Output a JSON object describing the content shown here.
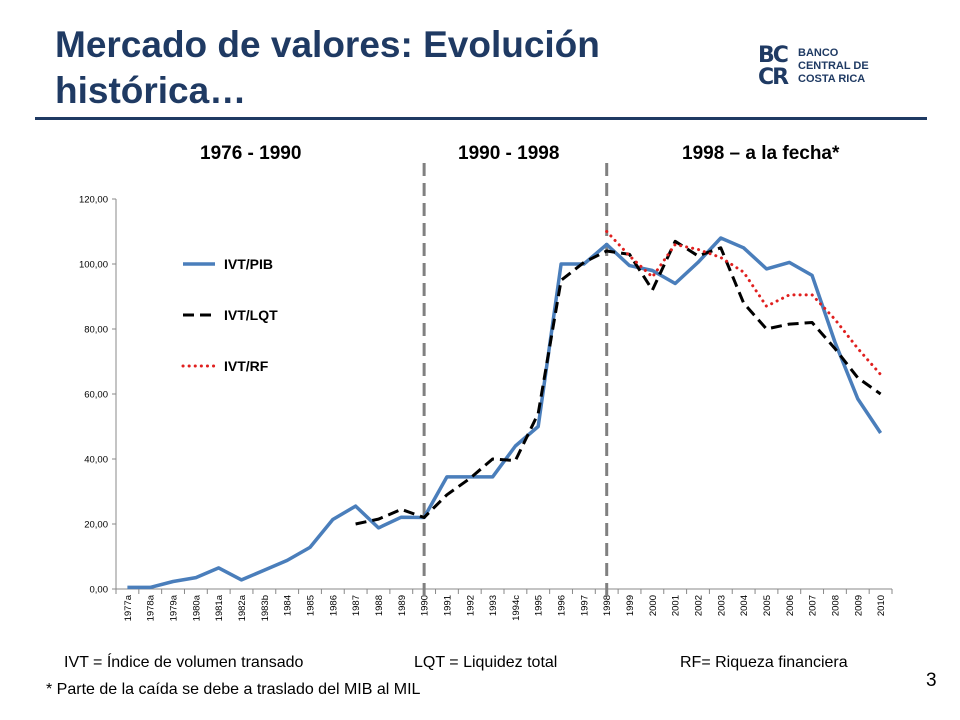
{
  "slide": {
    "title": "Mercado de valores: Evolución histórica…",
    "number": "3",
    "logo": {
      "mark_top": "BC",
      "mark_bottom": "CR",
      "line1": "BANCO",
      "line2": "CENTRAL DE",
      "line3": "COSTA RICA"
    },
    "periods": [
      "1976 - 1990",
      "1990 - 1998",
      "1998 – a la fecha*"
    ],
    "footnotes": {
      "ivt": "IVT = Índice  de  volumen transado",
      "lqt": "LQT = Liquidez total",
      "rf": "RF= Riqueza financiera",
      "note": "* Parte de la caída se debe a traslado del MIB al MIL"
    },
    "colors": {
      "title": "#1F3A63",
      "ivt_pib": "#4A7EBB",
      "ivt_lqt": "#000000",
      "ivt_rf": "#E0201F",
      "divider": "#808080"
    }
  },
  "chart_data": {
    "type": "line",
    "categories": [
      "1977a",
      "1978a",
      "1979a",
      "1980a",
      "1981a",
      "1982a",
      "1983b",
      "1984",
      "1985",
      "1986",
      "1987",
      "1988",
      "1989",
      "1990",
      "1991",
      "1992",
      "1993",
      "1994c",
      "1995",
      "1996",
      "1997",
      "1998",
      "1999",
      "2000",
      "2001",
      "2002",
      "2003",
      "2004",
      "2005",
      "2006",
      "2007",
      "2008",
      "2009",
      "2010"
    ],
    "ylim": [
      0,
      120
    ],
    "yticks": [
      "0,00",
      "20,00",
      "40,00",
      "60,00",
      "80,00",
      "100,00",
      "120,00"
    ],
    "grid": false,
    "legend": "top-left",
    "dividers_after_category": [
      "1990",
      "1998"
    ],
    "series": [
      {
        "name": "IVT/PIB",
        "style": "solid",
        "values": [
          0.5,
          0.5,
          2.3,
          3.5,
          6.5,
          2.8,
          5.8,
          8.8,
          12.8,
          21.4,
          25.5,
          18.8,
          22.1,
          22.0,
          34.5,
          34.5,
          34.5,
          44.0,
          50.0,
          100.0,
          100.0,
          106.0,
          99.5,
          98.0,
          94.0,
          100.5,
          108.0,
          105.0,
          98.5,
          100.5,
          96.5,
          76.0,
          58.5,
          48.0
        ]
      },
      {
        "name": "IVT/LQT",
        "style": "dashed",
        "values": [
          null,
          null,
          null,
          null,
          null,
          null,
          null,
          null,
          null,
          null,
          20.0,
          21.5,
          24.5,
          22.0,
          29.0,
          34.0,
          40.0,
          39.5,
          54.0,
          95.0,
          100.5,
          104.0,
          103.0,
          92.0,
          107.0,
          102.5,
          105.0,
          88.0,
          80.0,
          81.5,
          82.0,
          74.0,
          65.0,
          60.0
        ]
      },
      {
        "name": "IVT/RF",
        "style": "dotted",
        "values": [
          null,
          null,
          null,
          null,
          null,
          null,
          null,
          null,
          null,
          null,
          null,
          null,
          null,
          null,
          null,
          null,
          null,
          null,
          null,
          null,
          null,
          110.0,
          102.5,
          96.0,
          106.0,
          104.5,
          102.0,
          97.5,
          87.0,
          90.5,
          90.5,
          83.0,
          74.0,
          66.0
        ]
      }
    ]
  }
}
